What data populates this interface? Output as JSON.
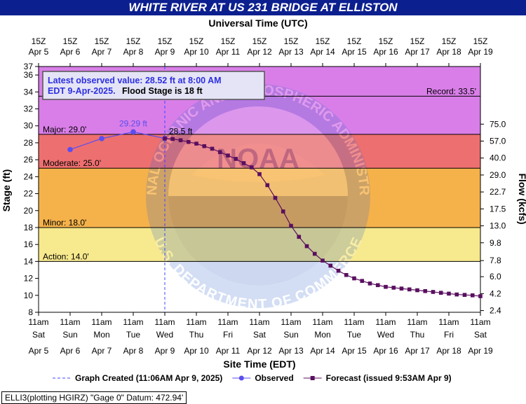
{
  "title": "WHITE RIVER AT US 231 BRIDGE AT ELLISTON",
  "top_axis_label": "Universal Time (UTC)",
  "bottom_axis_label": "Site Time (EDT)",
  "footer": "ELLI3(plotting HGIRZ) \"Gage 0\" Datum: 472.94'",
  "info_box": {
    "line1": "Latest observed value: 28.52 ft at 8:00 AM",
    "line2": "EDT 9-Apr-2025.",
    "line2_bold": "Flood Stage is 18 ft"
  },
  "colors": {
    "record": "#d97ee8",
    "major": "#ee6f6f",
    "moderate": "#f6b24a",
    "minor": "#f7e98d",
    "action": "#f7f7a8",
    "normal": "#ffffff",
    "observed": "#5a4ef0",
    "forecast": "#5a0f5f"
  },
  "chart_data": {
    "type": "line",
    "title": "WHITE RIVER AT US 231 BRIDGE AT ELLISTON",
    "ylabel": "Stage (ft)",
    "y2label": "Flow (kcfs)",
    "xlabel": "Site Time (EDT)",
    "ylim": [
      8,
      37
    ],
    "xlim": [
      0,
      14
    ],
    "y_ticks": [
      8,
      10,
      12,
      14,
      16,
      18,
      20,
      22,
      24,
      26,
      28,
      30,
      32,
      34,
      36,
      37
    ],
    "flow_ticks": [
      {
        "stage": 8.2,
        "label": "2.4"
      },
      {
        "stage": 10.2,
        "label": "4.2"
      },
      {
        "stage": 12.2,
        "label": "6.0"
      },
      {
        "stage": 14.1,
        "label": "7.8"
      },
      {
        "stage": 16.2,
        "label": "9.8"
      },
      {
        "stage": 18.2,
        "label": "13.0"
      },
      {
        "stage": 20.2,
        "label": "17.5"
      },
      {
        "stage": 22.2,
        "label": "22.7"
      },
      {
        "stage": 24.2,
        "label": "29.0"
      },
      {
        "stage": 26.2,
        "label": "40.0"
      },
      {
        "stage": 28.2,
        "label": "57.0"
      },
      {
        "stage": 30.2,
        "label": "75.0"
      }
    ],
    "bottom_ticks": [
      {
        "day": 0,
        "time": "11am",
        "dow": "Sat",
        "date": "Apr 5"
      },
      {
        "day": 1,
        "time": "11am",
        "dow": "Sun",
        "date": "Apr 6"
      },
      {
        "day": 2,
        "time": "11am",
        "dow": "Mon",
        "date": "Apr 7"
      },
      {
        "day": 3,
        "time": "11am",
        "dow": "Tue",
        "date": "Apr 8"
      },
      {
        "day": 4,
        "time": "11am",
        "dow": "Wed",
        "date": "Apr 9"
      },
      {
        "day": 5,
        "time": "11am",
        "dow": "Thu",
        "date": "Apr 10"
      },
      {
        "day": 6,
        "time": "11am",
        "dow": "Fri",
        "date": "Apr 11"
      },
      {
        "day": 7,
        "time": "11am",
        "dow": "Sat",
        "date": "Apr 12"
      },
      {
        "day": 8,
        "time": "11am",
        "dow": "Sun",
        "date": "Apr 13"
      },
      {
        "day": 9,
        "time": "11am",
        "dow": "Mon",
        "date": "Apr 14"
      },
      {
        "day": 10,
        "time": "11am",
        "dow": "Tue",
        "date": "Apr 15"
      },
      {
        "day": 11,
        "time": "11am",
        "dow": "Wed",
        "date": "Apr 16"
      },
      {
        "day": 12,
        "time": "11am",
        "dow": "Thu",
        "date": "Apr 17"
      },
      {
        "day": 13,
        "time": "11am",
        "dow": "Fri",
        "date": "Apr 18"
      },
      {
        "day": 14,
        "time": "11am",
        "dow": "Sat",
        "date": "Apr 19"
      }
    ],
    "top_ticks": [
      {
        "day": 0,
        "time": "15Z",
        "date": "Apr 5"
      },
      {
        "day": 1,
        "time": "15Z",
        "date": "Apr 6"
      },
      {
        "day": 2,
        "time": "15Z",
        "date": "Apr 7"
      },
      {
        "day": 3,
        "time": "15Z",
        "date": "Apr 8"
      },
      {
        "day": 4,
        "time": "15Z",
        "date": "Apr 9"
      },
      {
        "day": 5,
        "time": "15Z",
        "date": "Apr 10"
      },
      {
        "day": 6,
        "time": "15Z",
        "date": "Apr 11"
      },
      {
        "day": 7,
        "time": "15Z",
        "date": "Apr 12"
      },
      {
        "day": 8,
        "time": "15Z",
        "date": "Apr 13"
      },
      {
        "day": 9,
        "time": "15Z",
        "date": "Apr 14"
      },
      {
        "day": 10,
        "time": "15Z",
        "date": "Apr 15"
      },
      {
        "day": 11,
        "time": "15Z",
        "date": "Apr 16"
      },
      {
        "day": 12,
        "time": "15Z",
        "date": "Apr 17"
      },
      {
        "day": 13,
        "time": "15Z",
        "date": "Apr 18"
      },
      {
        "day": 14,
        "time": "15Z",
        "date": "Apr 19"
      }
    ],
    "bands": [
      {
        "name": "record",
        "from": 29,
        "to": 37
      },
      {
        "name": "major",
        "from": 25,
        "to": 29
      },
      {
        "name": "moderate",
        "from": 18,
        "to": 25
      },
      {
        "name": "minor",
        "from": 14,
        "to": 18
      },
      {
        "name": "normal",
        "from": 8,
        "to": 14
      }
    ],
    "thresholds": [
      {
        "name": "record",
        "stage": 33.5,
        "label": "Record: 33.5'"
      },
      {
        "name": "major",
        "stage": 29.0,
        "label": "Major: 29.0'"
      },
      {
        "name": "moderate",
        "stage": 25.0,
        "label": "Moderate: 25.0'"
      },
      {
        "name": "minor",
        "stage": 18.0,
        "label": "Minor: 18.0'"
      },
      {
        "name": "action",
        "stage": 14.0,
        "label": "Action: 14.0'"
      }
    ],
    "graph_created_day": 4.0,
    "series": [
      {
        "name": "Observed",
        "x": [
          1.0,
          2.0,
          3.0,
          4.0
        ],
        "y": [
          27.2,
          28.5,
          29.29,
          28.52
        ]
      },
      {
        "name": "Forecast",
        "x": [
          4.0,
          4.25,
          4.5,
          4.75,
          5.0,
          5.25,
          5.5,
          5.75,
          6.0,
          6.25,
          6.5,
          6.75,
          7.0,
          7.25,
          7.5,
          7.75,
          8.0,
          8.25,
          8.5,
          8.75,
          9.0,
          9.25,
          9.5,
          9.75,
          10.0,
          10.25,
          10.5,
          10.75,
          11.0,
          11.25,
          11.5,
          11.75,
          12.0,
          12.25,
          12.5,
          12.75,
          13.0,
          13.25,
          13.5,
          13.75,
          14.0
        ],
        "y": [
          28.5,
          28.45,
          28.3,
          28.1,
          27.9,
          27.6,
          27.3,
          26.9,
          26.5,
          26.1,
          25.6,
          25.1,
          24.3,
          23.0,
          21.5,
          19.9,
          18.2,
          16.9,
          15.8,
          14.9,
          14.1,
          13.5,
          12.9,
          12.4,
          12.0,
          11.7,
          11.4,
          11.2,
          11.0,
          10.9,
          10.8,
          10.7,
          10.6,
          10.5,
          10.4,
          10.3,
          10.2,
          10.1,
          10.05,
          10.0,
          9.9
        ]
      }
    ],
    "annotations": [
      {
        "text": "29.29 ft",
        "x": 3.0,
        "y": 29.29,
        "series": "Observed"
      },
      {
        "text": "28.5 ft",
        "x": 4.0,
        "y": 28.52,
        "series": "Forecast"
      }
    ],
    "legend": [
      {
        "label": "Graph Created (11:06AM Apr 9, 2025)",
        "style": "dashed"
      },
      {
        "label": "Observed",
        "style": "observed"
      },
      {
        "label": "Forecast (issued 9:53AM Apr 9)",
        "style": "forecast"
      }
    ],
    "watermark": {
      "center": "NOAA",
      "ring_top": "NATIONAL OCEANIC AND ATMOSPHERIC ADMINISTRATION",
      "ring_bottom": "U.S. DEPARTMENT OF COMMERCE"
    }
  }
}
